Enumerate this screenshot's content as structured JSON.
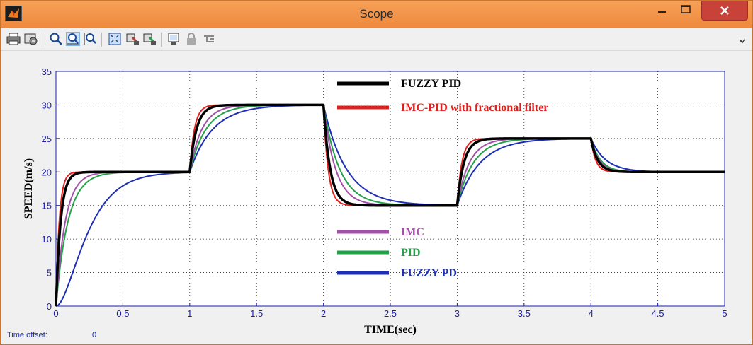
{
  "window": {
    "title": "Scope"
  },
  "toolbar": {
    "buttons": [
      "print-icon",
      "parameters-icon",
      "zoom-icon",
      "zoom-x-icon",
      "zoom-y-icon",
      "autoscale-icon",
      "save-axes-icon",
      "restore-axes-icon",
      "floating-scope-icon",
      "lock-icon",
      "signal-selection-icon"
    ]
  },
  "status": {
    "time_offset_label": "Time offset:",
    "time_offset_value": "0"
  },
  "chart_data": {
    "type": "line",
    "xlabel": "TIME(sec)",
    "ylabel": "SPEED(m/s)",
    "xlim": [
      0,
      5
    ],
    "ylim": [
      0,
      35
    ],
    "xticks": [
      "0",
      "0.5",
      "1",
      "1.5",
      "2",
      "2.5",
      "3",
      "3.5",
      "4",
      "4.5",
      "5"
    ],
    "yticks": [
      "0",
      "5",
      "10",
      "15",
      "20",
      "25",
      "30",
      "35"
    ],
    "grid": true,
    "background": "#ffffff",
    "setpoints": [
      {
        "t": 0,
        "v": 20
      },
      {
        "t": 1,
        "v": 30
      },
      {
        "t": 2,
        "v": 15
      },
      {
        "t": 3,
        "v": 25
      },
      {
        "t": 4,
        "v": 20
      }
    ],
    "series": [
      {
        "name": "FUZZY PID",
        "color": "#000000",
        "tau": [
          0.035,
          0.05,
          0.05,
          0.05,
          0.05
        ],
        "width": 3.5
      },
      {
        "name": "IMC-PID with fractional filter",
        "color": "#e0201c",
        "tau": [
          0.025,
          0.035,
          0.035,
          0.035,
          0.035
        ],
        "width": 2
      },
      {
        "name": "IMC",
        "color": "#a24fa8",
        "tau": [
          0.07,
          0.09,
          0.09,
          0.09,
          0.06
        ],
        "width": 2
      },
      {
        "name": "PID",
        "color": "#23a348",
        "tau": [
          0.09,
          0.12,
          0.12,
          0.12,
          0.07
        ],
        "width": 2
      },
      {
        "name": "FUZZY PD",
        "color": "#1f2fb5",
        "tau": [
          0.13,
          0.17,
          0.17,
          0.17,
          0.11
        ],
        "width": 2
      }
    ],
    "legend_order_top": [
      "FUZZY PID",
      "IMC-PID with fractional filter"
    ],
    "legend_order_bottom": [
      "IMC",
      "PID",
      "FUZZY PD"
    ]
  }
}
